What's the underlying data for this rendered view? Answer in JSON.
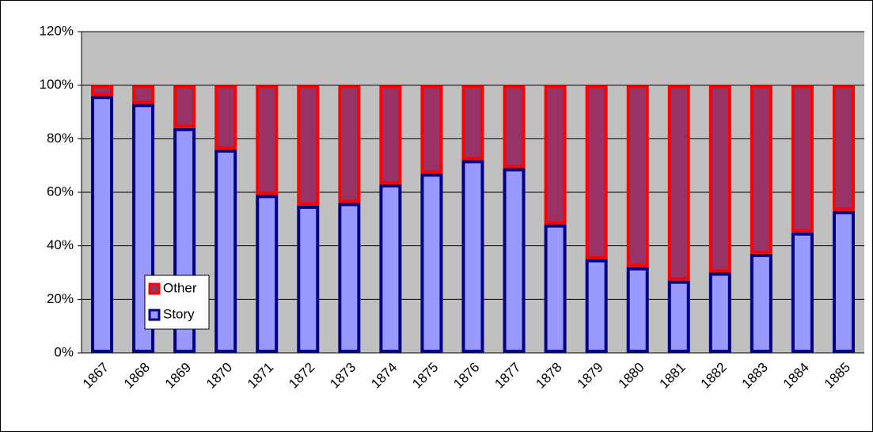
{
  "chart_data": {
    "type": "stacked_bar",
    "categories": [
      "1867",
      "1868",
      "1869",
      "1870",
      "1871",
      "1872",
      "1873",
      "1874",
      "1875",
      "1876",
      "1877",
      "1878",
      "1879",
      "1880",
      "1881",
      "1882",
      "1883",
      "1884",
      "1885"
    ],
    "series": [
      {
        "name": "Story",
        "color": "#9999ff",
        "edge_color": "#000080",
        "values": [
          96,
          93,
          84,
          76,
          59,
          55,
          56,
          63,
          67,
          72,
          69,
          48,
          35,
          32,
          27,
          30,
          37,
          45,
          53
        ]
      },
      {
        "name": "Other",
        "color": "#993366",
        "edge_color": "#ff0000",
        "values": [
          4,
          7,
          16,
          24,
          41,
          45,
          44,
          37,
          33,
          28,
          31,
          52,
          65,
          68,
          73,
          70,
          63,
          55,
          47
        ]
      }
    ],
    "ylim": [
      0,
      120
    ],
    "yticks": [
      {
        "value": 0,
        "label": "0%"
      },
      {
        "value": 20,
        "label": "20%"
      },
      {
        "value": 40,
        "label": "40%"
      },
      {
        "value": 60,
        "label": "60%"
      },
      {
        "value": 80,
        "label": "80%"
      },
      {
        "value": 100,
        "label": "100%"
      },
      {
        "value": 120,
        "label": "120%"
      }
    ],
    "grid": true,
    "legend_position": "left"
  }
}
